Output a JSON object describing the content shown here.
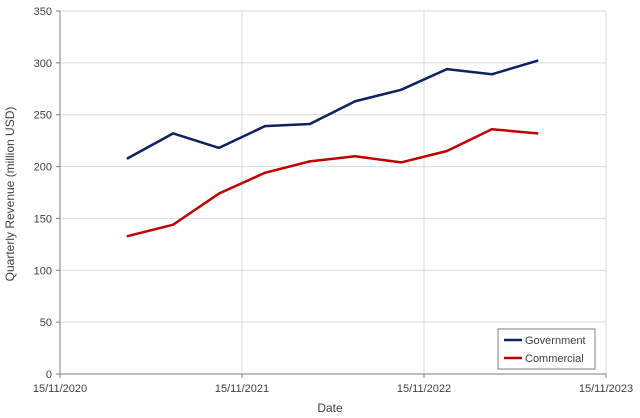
{
  "chart_data": {
    "type": "line",
    "title": "",
    "xlabel": "Date",
    "ylabel": "Quarterly Revenue (million USD)",
    "x_axis": {
      "kind": "date",
      "range": [
        "2020-11-15",
        "2023-11-15"
      ],
      "tick_values": [
        "2020-11-15",
        "2021-11-15",
        "2022-11-15",
        "2023-11-15"
      ],
      "tick_labels": [
        "15/11/2020",
        "15/11/2021",
        "15/11/2022",
        "15/11/2023"
      ]
    },
    "ylim": [
      0,
      350
    ],
    "y_ticks": [
      0,
      50,
      100,
      150,
      200,
      250,
      300,
      350
    ],
    "grid": true,
    "legend_position": "bottom-right",
    "x": [
      "2021-03-31",
      "2021-06-30",
      "2021-09-30",
      "2021-12-31",
      "2022-03-31",
      "2022-06-30",
      "2022-09-30",
      "2022-12-31",
      "2023-03-31",
      "2023-06-30"
    ],
    "series": [
      {
        "name": "Government",
        "color": "#0d2260",
        "values": [
          208,
          232,
          218,
          239,
          241,
          263,
          274,
          294,
          289,
          302
        ]
      },
      {
        "name": "Commercial",
        "color": "#c00000",
        "values": [
          133,
          144,
          174,
          194,
          205,
          210,
          204,
          215,
          236,
          232
        ]
      }
    ]
  }
}
